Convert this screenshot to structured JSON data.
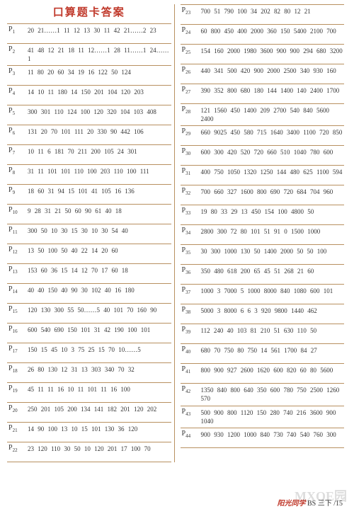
{
  "title": "口算题卡答案",
  "footer": {
    "brand": "阳光同学",
    "code": "BS 三下 /15"
  },
  "watermark": "MXQE园",
  "left": [
    {
      "p": "P₁",
      "v": "20 21……1 11 12 13 30 11 42 21……2 23"
    },
    {
      "p": "P₂",
      "v": "41 48 12 21 18 11 12……1 28 11……1 24……1"
    },
    {
      "p": "P₃",
      "v": "11 80 20 60 34 19 16 122 50 124"
    },
    {
      "p": "P₄",
      "v": "14 10 11 180 14 150 201 104 120 203"
    },
    {
      "p": "P₅",
      "v": "300 301 110 124 100 120 320 104 103 408"
    },
    {
      "p": "P₆",
      "v": "131 20 70 101 111 20 330 90 442 106"
    },
    {
      "p": "P₇",
      "v": "10 11 6 181 70 211 200 105 24 301"
    },
    {
      "p": "P₈",
      "v": "31 11 101 101 110 100 203 110 100 111"
    },
    {
      "p": "P₉",
      "v": "18 60 31 94 15 101 41 105 16 136"
    },
    {
      "p": "P₁₀",
      "v": "9 28 31 21 50 60 90 61 40 18"
    },
    {
      "p": "P₁₁",
      "v": "300 50 10 30 15 30 10 30 54 40"
    },
    {
      "p": "P₁₂",
      "v": "13 50 100 50 40 22 14 20 60"
    },
    {
      "p": "P₁₃",
      "v": "153 60 36 15 14 12 70 17 60 18"
    },
    {
      "p": "P₁₄",
      "v": "40 40 150 40 90 30 102 40 16 180"
    },
    {
      "p": "P₁₅",
      "v": "120 130 300 55 50……5 40 101 70 160 90"
    },
    {
      "p": "P₁₆",
      "v": "600 540 690 150 101 31 42 190 100 101"
    },
    {
      "p": "P₁₇",
      "v": "150 15 45 10 3 75 25 15 70 10……5"
    },
    {
      "p": "P₁₈",
      "v": "26 80 130 12 31 13 303 340 70 32"
    },
    {
      "p": "P₁₉",
      "v": "45 11 11 16 10 11 101 11 16 100"
    },
    {
      "p": "P₂₀",
      "v": "250 201 105 200 134 141 182 201 120 202"
    },
    {
      "p": "P₂₁",
      "v": "14 90 100 13 10 15 101 130 36 120"
    },
    {
      "p": "P₂₂",
      "v": "23 120 110 30 50 10 120 201 17 100 70"
    }
  ],
  "right": [
    {
      "p": "P₂₃",
      "v": "700 51 790 100 34 202 82 80 12 21"
    },
    {
      "p": "P₂₄",
      "v": "60 800 450 400 2000 360 150 5400 2100 700"
    },
    {
      "p": "P₂₅",
      "v": "154 160 2000 1980 3600 900 900 294 680 3200"
    },
    {
      "p": "P₂₆",
      "v": "440 341 500 420 900 2000 2500 340 930 160"
    },
    {
      "p": "P₂₇",
      "v": "390 352 800 680 180 144 1400 140 2400 1700"
    },
    {
      "p": "P₂₈",
      "v": "121 1560 450 1400 209 2700 540 840 5600 2400"
    },
    {
      "p": "P₂₉",
      "v": "660 9025 450 580 715 1640 3400 1100 720 850"
    },
    {
      "p": "P₃₀",
      "v": "600 300 420 520 720 660 510 1040 780 600"
    },
    {
      "p": "P₃₁",
      "v": "400 750 1050 1320 1250 144 480 625 1100 594"
    },
    {
      "p": "P₃₂",
      "v": "700 660 327 1600 800 690 720 684 704 960"
    },
    {
      "p": "P₃₃",
      "v": "19 80 33 29 13 450 154 100 4800 50"
    },
    {
      "p": "P₃₄",
      "v": "2800 300 72 80 101 51 91 0 1500 1000"
    },
    {
      "p": "P₃₅",
      "v": "30 300 1000 130 50 1400 2000 50 50 100"
    },
    {
      "p": "P₃₆",
      "v": "350 480 618 200 65 45 51 268 21 60"
    },
    {
      "p": "P₃₇",
      "v": "1000 3 7000 5 1000 8000 840 1080 600 101"
    },
    {
      "p": "P₃₈",
      "v": "5000 3 8000 6 6 3 920 9800 1440 462"
    },
    {
      "p": "P₃₉",
      "v": "112 240 40 103 81 210 51 630 110 50"
    },
    {
      "p": "P₄₀",
      "v": "680 70 750 80 750 14 561 1700 84 27"
    },
    {
      "p": "P₄₁",
      "v": "800 900 927 2600 1620 600 820 60 80 5600"
    },
    {
      "p": "P₄₂",
      "v": "1350 840 800 640 350 600 780 750 2500 1260 570"
    },
    {
      "p": "P₄₃",
      "v": "500 900 800 1120 150 280 740 216 3600 900 1040"
    },
    {
      "p": "P₄₄",
      "v": "900 930 1200 1000 840 730 740 540 760 300"
    }
  ]
}
